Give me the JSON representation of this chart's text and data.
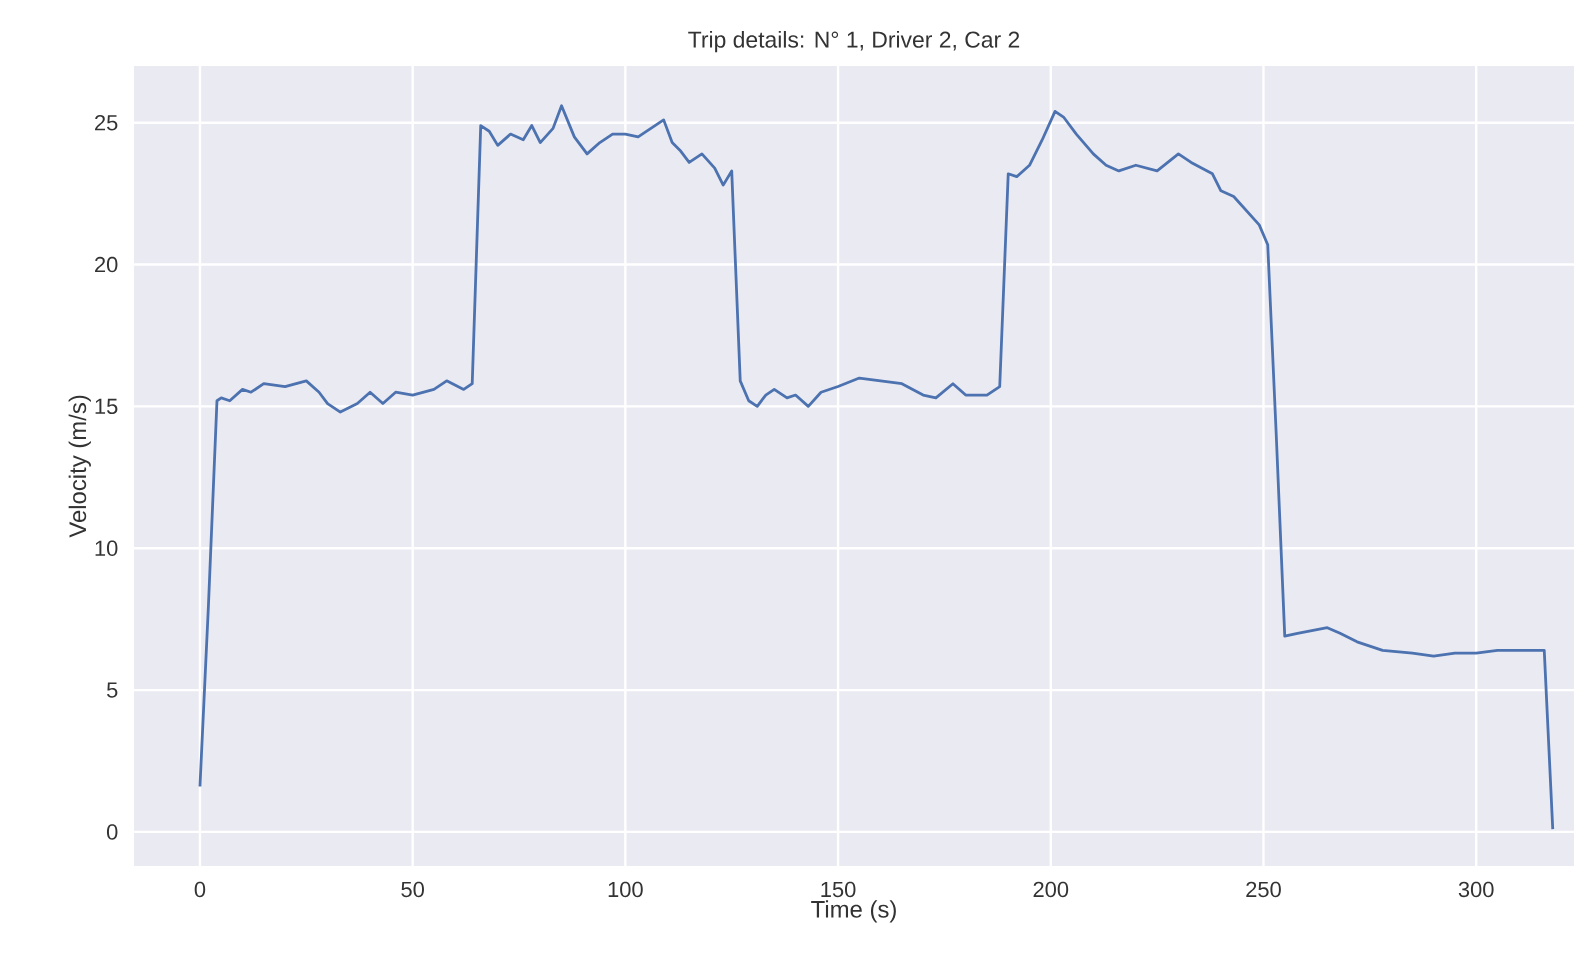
{
  "chart_data": {
    "type": "line",
    "title": "Trip details: N° 1, Driver 2, Car 2",
    "xlabel": "Time (s)",
    "ylabel": "Velocity (m/s)",
    "x": [
      0,
      2,
      4,
      5,
      7,
      10,
      12,
      15,
      20,
      25,
      28,
      30,
      33,
      37,
      40,
      43,
      46,
      50,
      55,
      58,
      62,
      64,
      66,
      68,
      70,
      73,
      76,
      78,
      80,
      83,
      85,
      88,
      91,
      94,
      97,
      100,
      103,
      106,
      109,
      111,
      113,
      115,
      118,
      121,
      123,
      125,
      127,
      129,
      131,
      133,
      135,
      138,
      140,
      143,
      146,
      150,
      155,
      160,
      165,
      170,
      173,
      177,
      180,
      185,
      188,
      190,
      192,
      195,
      198,
      201,
      203,
      206,
      210,
      213,
      216,
      220,
      225,
      230,
      233,
      238,
      240,
      243,
      246,
      249,
      251,
      253,
      255,
      258,
      265,
      268,
      272,
      278,
      285,
      290,
      295,
      300,
      305,
      310,
      314,
      316,
      318
    ],
    "series": [
      {
        "color": "#4c72b0",
        "values": [
          1.6,
          8,
          15.2,
          15.3,
          15.2,
          15.6,
          15.5,
          15.8,
          15.7,
          15.9,
          15.5,
          15.1,
          14.8,
          15.1,
          15.5,
          15.1,
          15.5,
          15.4,
          15.6,
          15.9,
          15.6,
          15.8,
          24.9,
          24.7,
          24.2,
          24.6,
          24.4,
          24.9,
          24.3,
          24.8,
          25.6,
          24.5,
          23.9,
          24.3,
          24.6,
          24.6,
          24.5,
          24.8,
          25.1,
          24.3,
          24.0,
          23.6,
          23.9,
          23.4,
          22.8,
          23.3,
          15.9,
          15.2,
          15.0,
          15.4,
          15.6,
          15.3,
          15.4,
          15.0,
          15.5,
          15.7,
          16.0,
          15.9,
          15.8,
          15.4,
          15.3,
          15.8,
          15.4,
          15.4,
          15.7,
          23.2,
          23.1,
          23.5,
          24.4,
          25.4,
          25.2,
          24.6,
          23.9,
          23.5,
          23.3,
          23.5,
          23.3,
          23.9,
          23.6,
          23.2,
          22.6,
          22.4,
          21.9,
          21.4,
          20.7,
          14,
          6.9,
          7.0,
          7.2,
          7.0,
          6.7,
          6.4,
          6.3,
          6.2,
          6.3,
          6.3,
          6.4,
          6.4,
          6.4,
          6.4,
          0.1
        ]
      }
    ],
    "xlim": [
      -15.5,
      323
    ],
    "ylim": [
      -1.2,
      27
    ],
    "xticks": [
      0,
      50,
      100,
      150,
      200,
      250,
      300
    ],
    "yticks": [
      0,
      5,
      10,
      15,
      20,
      25
    ],
    "grid": true,
    "marker": "none",
    "line_style": "solid"
  }
}
